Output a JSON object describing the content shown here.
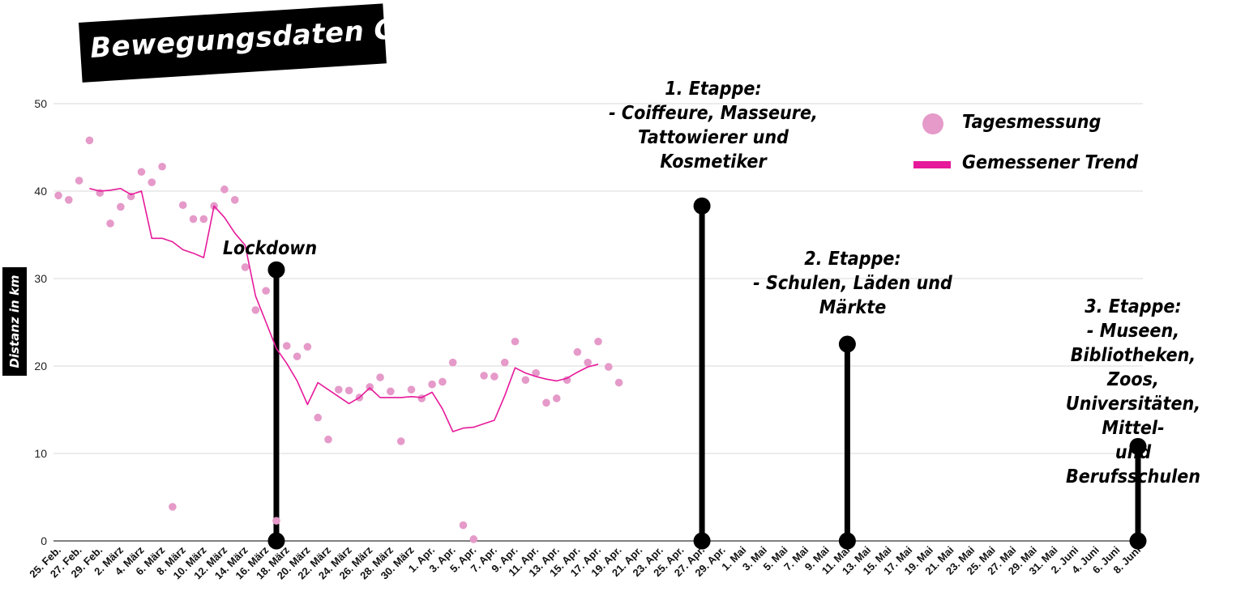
{
  "colors": {
    "points": "#e59ac9",
    "trend": "#e6199a",
    "stems": "#000000",
    "grid": "#d9d9d9"
  },
  "chart_data": {
    "type": "scatter",
    "title": "Bewegungsdaten CH",
    "ylabel": "Distanz in km",
    "xlabel": "",
    "ylim": [
      0,
      50
    ],
    "yticks": [
      0,
      10,
      20,
      30,
      40,
      50
    ],
    "grid": true,
    "legend_position": "top-right",
    "x_start": "2020-02-25",
    "x_end": "2020-06-08",
    "x_tick_labels": [
      "25. Feb.",
      "27. Feb.",
      "29. Feb.",
      "2. März",
      "4. März",
      "6. März",
      "8. März",
      "10. März",
      "12. März",
      "14. März",
      "16. März",
      "18. März",
      "20. März",
      "22. März",
      "24. März",
      "26. März",
      "28. März",
      "30. März",
      "1. Apr.",
      "3. Apr.",
      "5. Apr.",
      "7. Apr.",
      "9. Apr.",
      "11. Apr.",
      "13. Apr.",
      "15. Apr.",
      "17. Apr.",
      "19. Apr.",
      "21. Apr.",
      "23. Apr.",
      "25. Apr.",
      "27. Apr.",
      "29. Apr.",
      "1. Mai",
      "3. Mai",
      "5. Mai",
      "7. Mai",
      "9. Mai",
      "11. Mai",
      "13. Mai",
      "15. Mai",
      "17. Mai",
      "19. Mai",
      "21. Mai",
      "23. Mai",
      "25. Mai",
      "27. Mai",
      "29. Mai",
      "31. Mai",
      "2. Juni",
      "4. Juni",
      "6. Juni",
      "8. Juni"
    ],
    "legend": [
      {
        "label": "Tagesmessung",
        "kind": "dot"
      },
      {
        "label": "Gemessener Trend",
        "kind": "line"
      }
    ],
    "series": [
      {
        "name": "Tagesmessung",
        "kind": "points",
        "x": [
          "2020-02-25",
          "2020-02-26",
          "2020-02-27",
          "2020-02-28",
          "2020-02-29",
          "2020-03-01",
          "2020-03-02",
          "2020-03-03",
          "2020-03-04",
          "2020-03-05",
          "2020-03-06",
          "2020-03-07",
          "2020-03-08",
          "2020-03-09",
          "2020-03-10",
          "2020-03-11",
          "2020-03-12",
          "2020-03-13",
          "2020-03-14",
          "2020-03-15",
          "2020-03-16",
          "2020-03-17",
          "2020-03-18",
          "2020-03-19",
          "2020-03-20",
          "2020-03-21",
          "2020-03-22",
          "2020-03-23",
          "2020-03-24",
          "2020-03-25",
          "2020-03-26",
          "2020-03-27",
          "2020-03-28",
          "2020-03-29",
          "2020-03-30",
          "2020-03-31",
          "2020-04-01",
          "2020-04-02",
          "2020-04-03",
          "2020-04-04",
          "2020-04-05",
          "2020-04-06",
          "2020-04-07",
          "2020-04-08",
          "2020-04-09",
          "2020-04-10",
          "2020-04-11",
          "2020-04-12",
          "2020-04-13",
          "2020-04-14",
          "2020-04-15",
          "2020-04-16",
          "2020-04-17",
          "2020-04-18",
          "2020-04-19"
        ],
        "y": [
          39.5,
          39.0,
          41.2,
          45.8,
          39.8,
          36.3,
          38.2,
          39.4,
          42.2,
          41.0,
          42.8,
          3.9,
          38.4,
          36.8,
          36.8,
          38.3,
          40.2,
          39.0,
          31.3,
          26.4,
          28.6,
          2.3,
          22.3,
          21.1,
          22.2,
          14.1,
          11.6,
          17.3,
          17.2,
          16.4,
          17.6,
          18.7,
          17.1,
          11.4,
          17.3,
          16.3,
          17.9,
          18.2,
          20.4,
          1.8,
          0.2,
          18.9,
          18.8,
          20.4,
          22.8,
          18.4,
          19.2,
          15.8,
          16.3,
          18.4,
          21.6,
          20.4,
          22.8,
          19.9,
          18.1
        ]
      },
      {
        "name": "Gemessener Trend",
        "kind": "line",
        "x": [
          "2020-02-28",
          "2020-02-29",
          "2020-03-01",
          "2020-03-02",
          "2020-03-03",
          "2020-03-04",
          "2020-03-05",
          "2020-03-06",
          "2020-03-07",
          "2020-03-08",
          "2020-03-09",
          "2020-03-10",
          "2020-03-11",
          "2020-03-12",
          "2020-03-13",
          "2020-03-14",
          "2020-03-15",
          "2020-03-16",
          "2020-03-17",
          "2020-03-18",
          "2020-03-19",
          "2020-03-20",
          "2020-03-21",
          "2020-03-22",
          "2020-03-23",
          "2020-03-24",
          "2020-03-25",
          "2020-03-26",
          "2020-03-27",
          "2020-03-28",
          "2020-03-29",
          "2020-03-30",
          "2020-03-31",
          "2020-04-01",
          "2020-04-02",
          "2020-04-03",
          "2020-04-04",
          "2020-04-05",
          "2020-04-06",
          "2020-04-07",
          "2020-04-08",
          "2020-04-09",
          "2020-04-10",
          "2020-04-11",
          "2020-04-12",
          "2020-04-13",
          "2020-04-14",
          "2020-04-15",
          "2020-04-16",
          "2020-04-17"
        ],
        "y": [
          40.3,
          40.0,
          40.1,
          40.3,
          39.6,
          40.0,
          34.6,
          34.6,
          34.2,
          33.3,
          32.9,
          32.4,
          38.3,
          37.0,
          35.2,
          33.8,
          28.0,
          25.0,
          22.0,
          20.3,
          18.3,
          15.6,
          18.1,
          17.3,
          16.5,
          15.7,
          16.4,
          17.5,
          16.4,
          16.4,
          16.4,
          16.5,
          16.4,
          17.0,
          15.1,
          12.5,
          12.9,
          13.0,
          13.4,
          13.8,
          16.6,
          19.8,
          19.2,
          18.8,
          18.5,
          18.3,
          18.6,
          19.3,
          19.9,
          20.2
        ]
      }
    ],
    "milestones": [
      {
        "label": "Lockdown",
        "x": "2020-03-17",
        "y": 31
      },
      {
        "label": "1. Etappe:\n- Coiffeure, Masseure,\nTattowierer und\nKosmetiker",
        "x": "2020-04-27",
        "y": 38.3
      },
      {
        "label": "2. Etappe:\n- Schulen, Läden und\nMärkte",
        "x": "2020-05-11",
        "y": 22.5
      },
      {
        "label": "3. Etappe:\n- Museen,\nBibliotheken, Zoos,\nUniversitäten, Mittel-\nund Berufsschulen",
        "x": "2020-06-08",
        "y": 10.8
      }
    ]
  }
}
